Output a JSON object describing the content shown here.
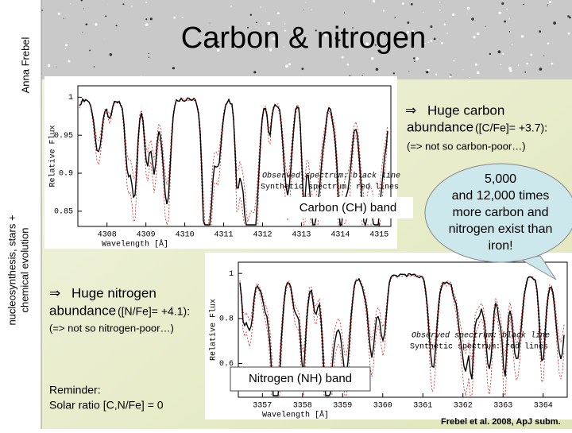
{
  "title": "Carbon & nitrogen",
  "sidebar": {
    "author": "Anna Frebel",
    "topic_line1": "nucleosynthesis, stars +",
    "topic_line2": "chemical evolution"
  },
  "carbon": {
    "arrow": "⇒",
    "headline": "Huge carbon",
    "headline2": "abundance",
    "ratio": "([C/Fe]= +3.7):",
    "note": "(=> not so carbon-poor…)",
    "band_label": "Carbon (CH) band",
    "plot": {
      "y_label": "Relative Flux",
      "x_label": "Wavelength [Å]",
      "legend_observed": "Observed spectrum: black line",
      "legend_synthetic": "Synthetic spectrum: red lines",
      "ylim": [
        0.83,
        1.015
      ],
      "yticks": [
        1,
        0.95,
        0.9,
        0.85
      ],
      "xlim": [
        4307.25,
        4315.3
      ],
      "xticks": [
        4308,
        4309,
        4310,
        4311,
        4312,
        4313,
        4314,
        4315
      ]
    }
  },
  "callout": [
    "5,000",
    "and 12,000 times",
    "more carbon and",
    "nitrogen exist than",
    "iron!"
  ],
  "nitrogen": {
    "arrow": "⇒",
    "headline": "Huge nitrogen",
    "headline2": "abundance",
    "ratio": "([N/Fe]= +4.1):",
    "note": "(=> not so nitrogen-poor…)",
    "band_label": "Nitrogen (NH) band",
    "plot": {
      "y_label": "Relative Flux",
      "x_label": "Wavelength [Å]",
      "legend_observed": "Observed spectrum: black line",
      "legend_synthetic": "Synthetic spectrum: red lines",
      "ylim": [
        0.45,
        1.05
      ],
      "yticks": [
        1,
        0.8,
        0.6
      ],
      "xlim": [
        3356.4,
        3364.6
      ],
      "xticks": [
        3357,
        3358,
        3359,
        3360,
        3361,
        3362,
        3363,
        3364
      ]
    }
  },
  "reminder": [
    "Reminder:",
    "Solar ratio [C,N/Fe] = 0"
  ],
  "citation": "Frebel et al. 2008, ApJ subm."
}
